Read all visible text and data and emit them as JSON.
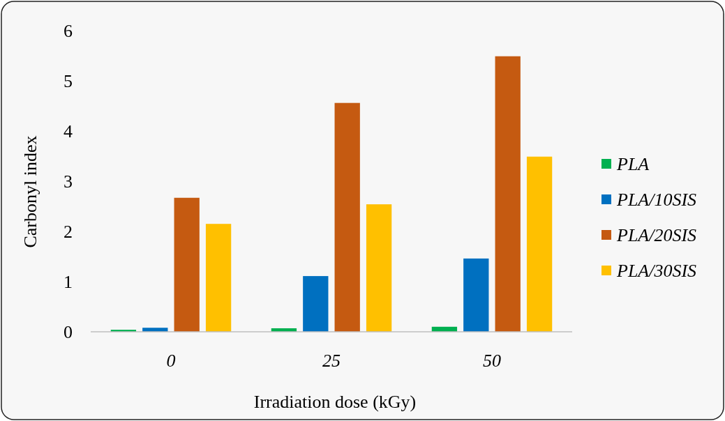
{
  "chart_data": {
    "type": "bar",
    "xlabel": "Irradiation dose (kGy)",
    "ylabel": "Carbonyl index",
    "categories": [
      "0",
      "25",
      "50"
    ],
    "series": [
      {
        "name": "PLA",
        "color": "#00b050",
        "values": [
          0.04,
          0.07,
          0.1
        ]
      },
      {
        "name": "PLA/10SIS",
        "color": "#0070c0",
        "values": [
          0.08,
          1.11,
          1.46
        ]
      },
      {
        "name": "PLA/20SIS",
        "color": "#c55a11",
        "values": [
          2.67,
          4.56,
          5.49
        ]
      },
      {
        "name": "PLA/30SIS",
        "color": "#ffc000",
        "values": [
          2.15,
          2.54,
          3.49
        ]
      }
    ],
    "ylim": [
      0,
      6
    ],
    "yticks": [
      0,
      1,
      2,
      3,
      4,
      5,
      6
    ],
    "grid": false,
    "legend": "right"
  }
}
